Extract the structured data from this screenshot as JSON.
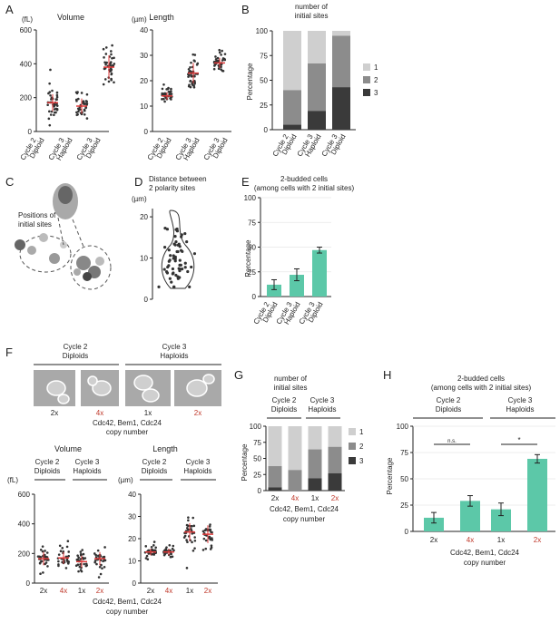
{
  "colors": {
    "accent_green": "#5cc8a8",
    "red_label": "#c0392b",
    "dot": "#333333",
    "mean_red": "#e03a3a",
    "stack1": "#cfcfcf",
    "stack2": "#8c8c8c",
    "stack3": "#3a3a3a"
  },
  "panel_letters": {
    "A": "A",
    "B": "B",
    "C": "C",
    "D": "D",
    "E": "E",
    "F": "F",
    "G": "G",
    "H": "H"
  },
  "panelA": {
    "volume_title": "Volume",
    "volume_unit": "(fL)",
    "length_title": "Length",
    "length_unit": "(µm)",
    "categories": [
      [
        "Cycle 2",
        "Diploid"
      ],
      [
        "Cycle 3",
        "Haploid"
      ],
      [
        "Cycle 3",
        "Diploid"
      ]
    ]
  },
  "panelB": {
    "title": [
      "number of",
      "initial sites"
    ],
    "ylabel": "Percentage",
    "legend": [
      "1",
      "2",
      "3"
    ],
    "categories": [
      [
        "Cycle 2",
        "Diploid"
      ],
      [
        "Cycle 3",
        "Haploid"
      ],
      [
        "Cycle 3",
        "Diploid"
      ]
    ]
  },
  "panelC": {
    "title": [
      "Positions of",
      "initial sites"
    ]
  },
  "panelD": {
    "title": [
      "Distance between",
      "2 polarity sites"
    ],
    "unit": "(µm)"
  },
  "panelE": {
    "title": [
      "2-budded cells",
      "(among cells with 2 initial sites)"
    ],
    "ylabel": "Percentage",
    "categories": [
      [
        "Cycle 2",
        "Diploid"
      ],
      [
        "Cycle 3",
        "Haploid"
      ],
      [
        "Cycle 3",
        "Diploid"
      ]
    ]
  },
  "panelF": {
    "group1": [
      "Cycle 2",
      "Diploids"
    ],
    "group2": [
      "Cycle 3",
      "Haploids"
    ],
    "copy_labels": [
      "2x",
      "4x",
      "1x",
      "2x"
    ],
    "copy_label_red": [
      false,
      true,
      false,
      true
    ],
    "axis_title": [
      "Cdc42, Bem1, Cdc24",
      "copy number"
    ],
    "volume_title": "Volume",
    "volume_unit": "(fL)",
    "length_title": "Length",
    "length_unit": "(µm)"
  },
  "panelG": {
    "title": [
      "number of",
      "initial sites"
    ],
    "group1": [
      "Cycle 2",
      "Diploids"
    ],
    "group2": [
      "Cycle 3",
      "Haploids"
    ],
    "ylabel": "Percentage",
    "legend": [
      "1",
      "2",
      "3"
    ],
    "copy_labels": [
      "2x",
      "4x",
      "1x",
      "2x"
    ],
    "axis_title": [
      "Cdc42, Bem1, Cdc24",
      "copy number"
    ]
  },
  "panelH": {
    "title": [
      "2-budded cells",
      "(among cells with 2 initial sites)"
    ],
    "group1": [
      "Cycle 2",
      "Diploids"
    ],
    "group2": [
      "Cycle 3",
      "Haploids"
    ],
    "ylabel": "Percentage",
    "sig1": "n.s.",
    "sig2": "*",
    "copy_labels": [
      "2x",
      "4x",
      "1x",
      "2x"
    ],
    "axis_title": [
      "Cdc42, Bem1, Cdc24",
      "copy number"
    ]
  },
  "chart_data": [
    {
      "id": "A-volume",
      "type": "scatter",
      "title": "Volume",
      "ylabel": "(fL)",
      "ylim": [
        0,
        600
      ],
      "yticks": [
        0,
        200,
        400,
        600
      ],
      "categories": [
        "Cycle 2 Diploid",
        "Cycle 3 Haploid",
        "Cycle 3 Diploid"
      ],
      "means": [
        170,
        150,
        380
      ],
      "sd": [
        50,
        45,
        70
      ]
    },
    {
      "id": "A-length",
      "type": "scatter",
      "title": "Length",
      "ylabel": "(µm)",
      "ylim": [
        0,
        40
      ],
      "yticks": [
        0,
        10,
        20,
        30,
        40
      ],
      "categories": [
        "Cycle 2 Diploid",
        "Cycle 3 Haploid",
        "Cycle 3 Diploid"
      ],
      "means": [
        14,
        23,
        27
      ],
      "sd": [
        1.5,
        4,
        2
      ]
    },
    {
      "id": "B",
      "type": "bar",
      "stacked": true,
      "title": "number of initial sites",
      "ylabel": "Percentage",
      "ylim": [
        0,
        100
      ],
      "yticks": [
        0,
        25,
        50,
        75,
        100
      ],
      "categories": [
        "Cycle 2 Diploid",
        "Cycle 3 Haploid",
        "Cycle 3 Diploid"
      ],
      "series": [
        {
          "name": "1",
          "values": [
            60,
            33,
            5
          ]
        },
        {
          "name": "2",
          "values": [
            35,
            48,
            52
          ]
        },
        {
          "name": "3",
          "values": [
            5,
            19,
            43
          ]
        }
      ]
    },
    {
      "id": "D",
      "type": "scatter",
      "title": "Distance between 2 polarity sites",
      "ylabel": "(µm)",
      "ylim": [
        0,
        22
      ],
      "yticks": [
        0,
        10,
        20
      ]
    },
    {
      "id": "E",
      "type": "bar",
      "title": "2-budded cells (among cells with 2 initial sites)",
      "ylabel": "Percentage",
      "ylim": [
        0,
        100
      ],
      "yticks": [
        0,
        25,
        50,
        75,
        100
      ],
      "categories": [
        "Cycle 2 Diploid",
        "Cycle 3 Haploid",
        "Cycle 3 Diploid"
      ],
      "values": [
        12,
        22,
        47
      ],
      "errors": [
        5,
        6,
        3
      ]
    },
    {
      "id": "F-volume",
      "type": "scatter",
      "title": "Volume",
      "ylabel": "(fL)",
      "ylim": [
        0,
        600
      ],
      "yticks": [
        0,
        200,
        400,
        600
      ],
      "categories": [
        "2x",
        "4x",
        "1x",
        "2x"
      ],
      "means": [
        165,
        170,
        145,
        165
      ],
      "sd": [
        45,
        40,
        40,
        45
      ]
    },
    {
      "id": "F-length",
      "type": "scatter",
      "title": "Length",
      "ylabel": "(µm)",
      "ylim": [
        0,
        40
      ],
      "yticks": [
        0,
        10,
        20,
        30,
        40
      ],
      "categories": [
        "2x",
        "4x",
        "1x",
        "2x"
      ],
      "means": [
        14,
        14,
        23,
        22
      ],
      "sd": [
        1.5,
        1.5,
        4,
        4
      ]
    },
    {
      "id": "G",
      "type": "bar",
      "stacked": true,
      "title": "number of initial sites",
      "ylabel": "Percentage",
      "ylim": [
        0,
        100
      ],
      "yticks": [
        0,
        25,
        50,
        75,
        100
      ],
      "categories": [
        "2x",
        "4x",
        "1x",
        "2x"
      ],
      "series": [
        {
          "name": "1",
          "values": [
            62,
            68,
            36,
            32
          ]
        },
        {
          "name": "2",
          "values": [
            33,
            32,
            45,
            41
          ]
        },
        {
          "name": "3",
          "values": [
            5,
            0,
            19,
            27
          ]
        }
      ]
    },
    {
      "id": "H",
      "type": "bar",
      "title": "2-budded cells (among cells with 2 initial sites)",
      "ylabel": "Percentage",
      "ylim": [
        0,
        100
      ],
      "yticks": [
        0,
        25,
        50,
        75,
        100
      ],
      "categories": [
        "2x",
        "4x",
        "1x",
        "2x"
      ],
      "values": [
        13,
        29,
        21,
        69
      ],
      "errors": [
        5,
        5,
        6,
        4
      ]
    }
  ]
}
